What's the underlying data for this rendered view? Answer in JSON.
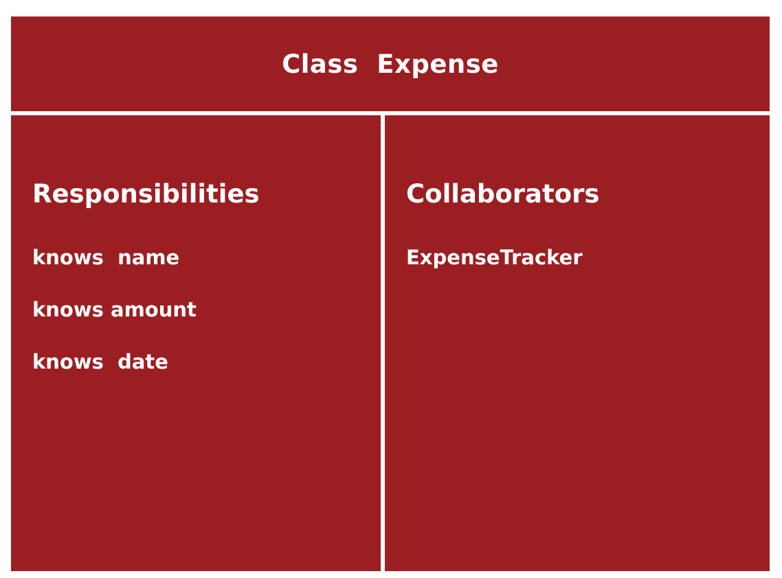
{
  "card": {
    "title": "Class  Expense",
    "accent_color": "#9b1f22"
  },
  "responsibilities": {
    "heading": "Responsibilities",
    "items": [
      {
        "label": "knows  name"
      },
      {
        "label": "knows amount"
      },
      {
        "label": "knows  date"
      }
    ]
  },
  "collaborators": {
    "heading": "Collaborators",
    "items": [
      {
        "label": "ExpenseTracker"
      }
    ]
  }
}
